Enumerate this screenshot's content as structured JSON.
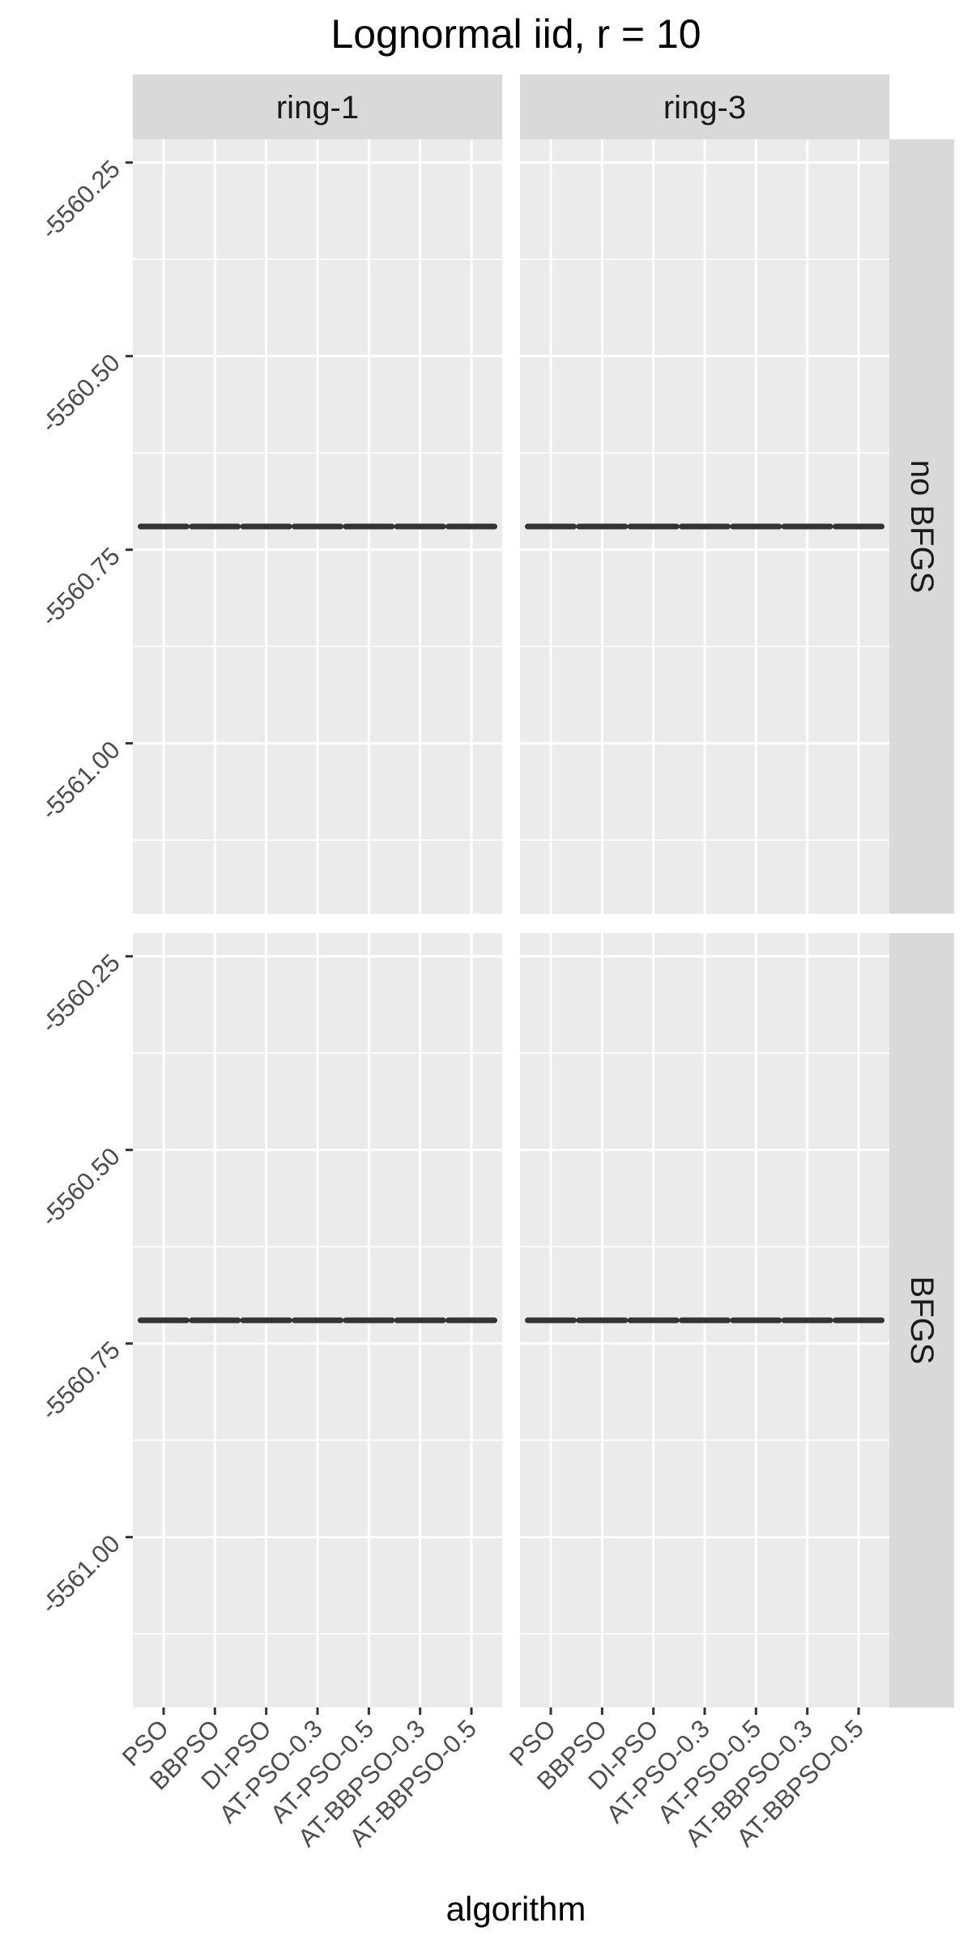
{
  "chart_data": {
    "type": "boxplot",
    "title": "Lognormal iid, r = 10",
    "xlabel": "algorithm",
    "ylabel": "",
    "categories": [
      "PSO",
      "BBPSO",
      "DI-PSO",
      "AT-PSO-0.3",
      "AT-PSO-0.5",
      "AT-BBPSO-0.3",
      "AT-BBPSO-0.5"
    ],
    "y_ticks": [
      -5560.25,
      -5560.5,
      -5560.75,
      -5561.0
    ],
    "y_tick_labels": [
      "-5560.25",
      "-5560.50",
      "-5560.75",
      "-5561.00"
    ],
    "ylim": [
      -5561.22,
      -5560.22
    ],
    "grid": true,
    "facet_columns": [
      "ring-1",
      "ring-3"
    ],
    "facet_rows": [
      "no BFGS",
      "BFGS"
    ],
    "panels": [
      {
        "column": "ring-1",
        "row": "no BFGS",
        "values": [
          -5560.72,
          -5560.72,
          -5560.72,
          -5560.72,
          -5560.72,
          -5560.72,
          -5560.72
        ]
      },
      {
        "column": "ring-3",
        "row": "no BFGS",
        "values": [
          -5560.72,
          -5560.72,
          -5560.72,
          -5560.72,
          -5560.72,
          -5560.72,
          -5560.72
        ]
      },
      {
        "column": "ring-1",
        "row": "BFGS",
        "values": [
          -5560.72,
          -5560.72,
          -5560.72,
          -5560.72,
          -5560.72,
          -5560.72,
          -5560.72
        ]
      },
      {
        "column": "ring-3",
        "row": "BFGS",
        "values": [
          -5560.72,
          -5560.72,
          -5560.72,
          -5560.72,
          -5560.72,
          -5560.72,
          -5560.72
        ]
      }
    ],
    "colors": {
      "panel_background": "#ebebeb",
      "strip_background": "#d9d9d9",
      "grid_major": "#ffffff",
      "box": "#333333"
    }
  }
}
